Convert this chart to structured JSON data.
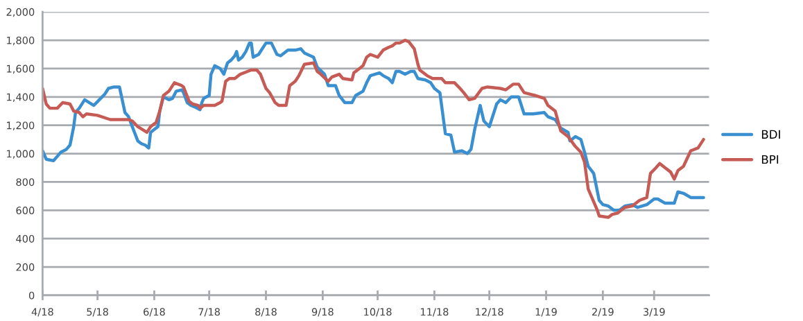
{
  "chart_data": {
    "type": "line",
    "legend": "right",
    "grid": "y",
    "line_style": "solid",
    "marker": "none",
    "xlim": [
      "2018-04-01",
      "2019-03-31"
    ],
    "xticks": [
      {
        "value": "2018-04-01",
        "label": "4/18"
      },
      {
        "value": "2018-05-01",
        "label": "5/18"
      },
      {
        "value": "2018-06-01",
        "label": "6/18"
      },
      {
        "value": "2018-07-01",
        "label": "7/18"
      },
      {
        "value": "2018-08-01",
        "label": "8/18"
      },
      {
        "value": "2018-09-01",
        "label": "9/18"
      },
      {
        "value": "2018-10-01",
        "label": "10/18"
      },
      {
        "value": "2018-11-01",
        "label": "11/18"
      },
      {
        "value": "2018-12-01",
        "label": "12/18"
      },
      {
        "value": "2019-01-01",
        "label": "1/19"
      },
      {
        "value": "2019-02-01",
        "label": "2/19"
      },
      {
        "value": "2019-03-01",
        "label": "3/19"
      }
    ],
    "ylim": [
      0,
      2000
    ],
    "yticks": [
      0,
      200,
      400,
      600,
      800,
      {
        "value": 1000,
        "label": "1,000"
      },
      {
        "value": 1200,
        "label": "1,200"
      },
      {
        "value": 1400,
        "label": "1,400"
      },
      {
        "value": 1600,
        "label": "1,600"
      },
      {
        "value": 1800,
        "label": "1,800"
      },
      {
        "value": 2000,
        "label": "2,000"
      }
    ],
    "series": [
      {
        "name": "BDI",
        "color": "#3a8fd0",
        "x": [
          "2018-04-01",
          "2018-04-03",
          "2018-04-07",
          "2018-04-09",
          "2018-04-11",
          "2018-04-14",
          "2018-04-16",
          "2018-04-18",
          "2018-04-19",
          "2018-04-21",
          "2018-04-24",
          "2018-04-29",
          "2018-05-02",
          "2018-05-05",
          "2018-05-07",
          "2018-05-10",
          "2018-05-13",
          "2018-05-14",
          "2018-05-16",
          "2018-05-18",
          "2018-05-20",
          "2018-05-23",
          "2018-05-25",
          "2018-05-27",
          "2018-05-29",
          "2018-05-30",
          "2018-06-01",
          "2018-06-03",
          "2018-06-04",
          "2018-06-06",
          "2018-06-09",
          "2018-06-11",
          "2018-06-13",
          "2018-06-16",
          "2018-06-17",
          "2018-06-19",
          "2018-06-21",
          "2018-06-23",
          "2018-06-26",
          "2018-06-27",
          "2018-06-28",
          "2018-07-01",
          "2018-07-02",
          "2018-07-04",
          "2018-07-07",
          "2018-07-09",
          "2018-07-11",
          "2018-07-13",
          "2018-07-15",
          "2018-07-16",
          "2018-07-17",
          "2018-07-19",
          "2018-07-21",
          "2018-07-23",
          "2018-07-24",
          "2018-07-25",
          "2018-07-28",
          "2018-07-30",
          "2018-08-01",
          "2018-08-04",
          "2018-08-07",
          "2018-08-09",
          "2018-08-13",
          "2018-08-17",
          "2018-08-20",
          "2018-08-22",
          "2018-08-27",
          "2018-08-29",
          "2018-09-02",
          "2018-09-04",
          "2018-09-08",
          "2018-09-10",
          "2018-09-13",
          "2018-09-17",
          "2018-09-19",
          "2018-09-23",
          "2018-09-25",
          "2018-09-27",
          "2018-10-02",
          "2018-10-04",
          "2018-10-07",
          "2018-10-09",
          "2018-10-11",
          "2018-10-13",
          "2018-10-16",
          "2018-10-19",
          "2018-10-21",
          "2018-10-23",
          "2018-10-27",
          "2018-10-30",
          "2018-11-01",
          "2018-11-04",
          "2018-11-07",
          "2018-11-10",
          "2018-11-12",
          "2018-11-16",
          "2018-11-19",
          "2018-11-21",
          "2018-11-23",
          "2018-11-26",
          "2018-11-28",
          "2018-12-01",
          "2018-12-05",
          "2018-12-07",
          "2018-12-10",
          "2018-12-13",
          "2018-12-17",
          "2018-12-20",
          "2018-12-25",
          "2018-12-31",
          "2019-01-02",
          "2019-01-06",
          "2019-01-09",
          "2019-01-13",
          "2019-01-14",
          "2019-01-17",
          "2019-01-20",
          "2019-01-22",
          "2019-01-24",
          "2019-01-27",
          "2019-01-30",
          "2019-02-01",
          "2019-02-04",
          "2019-02-07",
          "2019-02-10",
          "2019-02-13",
          "2019-02-17",
          "2019-02-20",
          "2019-02-25",
          "2019-03-01",
          "2019-03-03",
          "2019-03-07",
          "2019-03-12",
          "2019-03-14",
          "2019-03-17",
          "2019-03-21",
          "2019-03-25",
          "2019-03-28"
        ],
        "values": [
          1020,
          960,
          950,
          980,
          1010,
          1030,
          1060,
          1190,
          1290,
          1320,
          1380,
          1340,
          1380,
          1420,
          1460,
          1470,
          1470,
          1410,
          1290,
          1260,
          1190,
          1090,
          1070,
          1060,
          1040,
          1150,
          1170,
          1190,
          1300,
          1400,
          1380,
          1390,
          1440,
          1450,
          1430,
          1360,
          1340,
          1330,
          1310,
          1360,
          1390,
          1410,
          1560,
          1620,
          1600,
          1560,
          1640,
          1660,
          1690,
          1720,
          1660,
          1680,
          1720,
          1780,
          1780,
          1680,
          1700,
          1740,
          1780,
          1780,
          1700,
          1690,
          1730,
          1730,
          1740,
          1710,
          1680,
          1610,
          1560,
          1480,
          1480,
          1410,
          1360,
          1360,
          1410,
          1440,
          1500,
          1550,
          1570,
          1550,
          1530,
          1500,
          1580,
          1580,
          1560,
          1580,
          1580,
          1530,
          1520,
          1500,
          1460,
          1430,
          1140,
          1130,
          1010,
          1020,
          1000,
          1030,
          1170,
          1340,
          1230,
          1190,
          1350,
          1380,
          1360,
          1400,
          1400,
          1280,
          1280,
          1290,
          1260,
          1240,
          1180,
          1150,
          1090,
          1120,
          1100,
          1010,
          910,
          860,
          670,
          640,
          630,
          600,
          600,
          630,
          640,
          620,
          640,
          680,
          680,
          650,
          650,
          730,
          720,
          690,
          690,
          690
        ]
      },
      {
        "name": "BPI",
        "color": "#c65b55",
        "x": [
          "2018-04-01",
          "2018-04-03",
          "2018-04-05",
          "2018-04-09",
          "2018-04-12",
          "2018-04-16",
          "2018-04-18",
          "2018-04-21",
          "2018-04-23",
          "2018-04-25",
          "2018-05-01",
          "2018-05-08",
          "2018-05-11",
          "2018-05-18",
          "2018-05-20",
          "2018-05-23",
          "2018-05-28",
          "2018-05-30",
          "2018-06-02",
          "2018-06-04",
          "2018-06-06",
          "2018-06-09",
          "2018-06-12",
          "2018-06-16",
          "2018-06-17",
          "2018-06-20",
          "2018-06-22",
          "2018-06-25",
          "2018-06-26",
          "2018-06-28",
          "2018-07-02",
          "2018-07-04",
          "2018-07-07",
          "2018-07-08",
          "2018-07-10",
          "2018-07-12",
          "2018-07-15",
          "2018-07-18",
          "2018-07-22",
          "2018-07-24",
          "2018-07-27",
          "2018-07-29",
          "2018-08-01",
          "2018-08-03",
          "2018-08-06",
          "2018-08-08",
          "2018-08-12",
          "2018-08-14",
          "2018-08-17",
          "2018-08-19",
          "2018-08-22",
          "2018-08-27",
          "2018-08-29",
          "2018-08-31",
          "2018-09-04",
          "2018-09-06",
          "2018-09-10",
          "2018-09-12",
          "2018-09-17",
          "2018-09-18",
          "2018-09-21",
          "2018-09-23",
          "2018-09-25",
          "2018-09-27",
          "2018-10-01",
          "2018-10-04",
          "2018-10-07",
          "2018-10-09",
          "2018-10-11",
          "2018-10-13",
          "2018-10-16",
          "2018-10-18",
          "2018-10-21",
          "2018-10-23",
          "2018-10-24",
          "2018-10-28",
          "2018-10-31",
          "2018-11-05",
          "2018-11-07",
          "2018-11-12",
          "2018-11-15",
          "2018-11-17",
          "2018-11-20",
          "2018-11-23",
          "2018-11-27",
          "2018-11-30",
          "2018-12-07",
          "2018-12-10",
          "2018-12-14",
          "2018-12-17",
          "2018-12-20",
          "2018-12-23",
          "2018-12-26",
          "2018-12-31",
          "2019-01-02",
          "2019-01-06",
          "2019-01-09",
          "2019-01-13",
          "2019-01-17",
          "2019-01-20",
          "2019-01-22",
          "2019-01-24",
          "2019-01-26",
          "2019-01-29",
          "2019-01-30",
          "2019-02-04",
          "2019-02-06",
          "2019-02-09",
          "2019-02-13",
          "2019-02-17",
          "2019-02-21",
          "2019-02-25",
          "2019-02-27",
          "2019-03-02",
          "2019-03-04",
          "2019-03-07",
          "2019-03-10",
          "2019-03-12",
          "2019-03-14",
          "2019-03-17",
          "2019-03-21",
          "2019-03-25",
          "2019-03-28"
        ],
        "values": [
          1460,
          1350,
          1320,
          1320,
          1360,
          1350,
          1300,
          1290,
          1260,
          1280,
          1270,
          1240,
          1240,
          1240,
          1230,
          1190,
          1150,
          1190,
          1220,
          1300,
          1410,
          1440,
          1500,
          1480,
          1470,
          1370,
          1350,
          1340,
          1320,
          1340,
          1340,
          1340,
          1360,
          1370,
          1510,
          1530,
          1530,
          1560,
          1580,
          1590,
          1590,
          1560,
          1460,
          1430,
          1360,
          1340,
          1340,
          1480,
          1510,
          1550,
          1630,
          1640,
          1580,
          1560,
          1510,
          1540,
          1560,
          1530,
          1520,
          1570,
          1600,
          1620,
          1680,
          1700,
          1680,
          1730,
          1750,
          1760,
          1780,
          1780,
          1800,
          1790,
          1740,
          1630,
          1590,
          1550,
          1530,
          1530,
          1500,
          1500,
          1460,
          1430,
          1380,
          1390,
          1460,
          1470,
          1460,
          1450,
          1490,
          1490,
          1430,
          1420,
          1410,
          1390,
          1340,
          1300,
          1160,
          1120,
          1050,
          1010,
          940,
          750,
          690,
          600,
          560,
          550,
          570,
          580,
          620,
          630,
          670,
          690,
          860,
          900,
          930,
          900,
          870,
          820,
          880,
          910,
          1020,
          1040,
          1100
        ]
      }
    ]
  }
}
